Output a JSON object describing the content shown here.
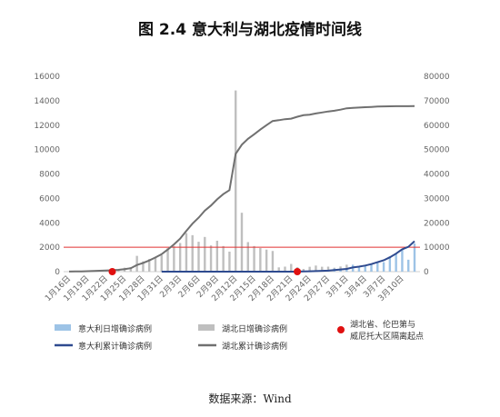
{
  "title": "图 2.4  意大利与湖北疫情时间线",
  "source": "数据来源：Wind",
  "colors": {
    "italy_daily": "#9dc3e6",
    "hubei_daily": "#bfbfbf",
    "italy_cum": "#2e4a8f",
    "hubei_cum": "#707070",
    "ref_line": "#e03030",
    "marker": "#e01010",
    "axis": "#d0d0d0"
  },
  "chart_data": {
    "type": "bar+line",
    "title": "图 2.4  意大利与湖北疫情时间线",
    "x_tick_labels": [
      "1月16日",
      "1月19日",
      "1月22日",
      "1月25日",
      "1月28日",
      "1月31日",
      "2月3日",
      "2月6日",
      "2月9日",
      "2月12日",
      "2月15日",
      "2月18日",
      "2月21日",
      "2月24日",
      "2月27日",
      "3月1日",
      "3月4日",
      "3月7日",
      "3月10日"
    ],
    "date_start": "1月16日",
    "left_axis": {
      "ylim": [
        0,
        16000
      ],
      "ticks": [
        "0",
        "2000",
        "4000",
        "6000",
        "8000",
        "10000",
        "12000",
        "14000",
        "16000"
      ]
    },
    "right_axis": {
      "ylim": [
        0,
        80000
      ],
      "ticks": [
        "0",
        "10000",
        "20000",
        "30000",
        "40000",
        "50000",
        "60000",
        "70000",
        "80000"
      ]
    },
    "reference_line_right": 10000,
    "series": [
      {
        "name": "意大利日增确诊病例",
        "kind": "bar",
        "axis": "left",
        "values": [
          0,
          0,
          0,
          0,
          0,
          0,
          0,
          0,
          0,
          0,
          0,
          0,
          0,
          0,
          0,
          2,
          0,
          0,
          0,
          0,
          0,
          0,
          0,
          0,
          0,
          0,
          0,
          0,
          0,
          0,
          0,
          0,
          0,
          0,
          0,
          0,
          0,
          14,
          62,
          53,
          97,
          93,
          78,
          250,
          238,
          240,
          566,
          342,
          466,
          587,
          769,
          778,
          1247,
          1492,
          1797,
          977,
          2313
        ]
      },
      {
        "name": "湖北日增确诊病例",
        "kind": "bar",
        "axis": "left",
        "values": [
          4,
          17,
          59,
          77,
          72,
          105,
          69,
          105,
          180,
          323,
          371,
          1291,
          840,
          1032,
          1220,
          1347,
          1921,
          2103,
          2345,
          3156,
          2987,
          2447,
          2841,
          2147,
          2531,
          2097,
          1638,
          14840,
          4823,
          2420,
          2097,
          1933,
          1807,
          1693,
          349,
          411,
          631,
          366,
          220,
          398,
          499,
          401,
          409,
          318,
          423,
          570,
          196,
          114,
          115,
          111,
          80,
          41,
          45,
          20,
          36,
          17,
          13
        ]
      },
      {
        "name": "意大利累计确诊病例",
        "kind": "line",
        "axis": "right",
        "values": [
          0,
          0,
          0,
          0,
          0,
          0,
          0,
          0,
          0,
          0,
          0,
          0,
          0,
          0,
          0,
          2,
          2,
          2,
          2,
          2,
          3,
          3,
          3,
          3,
          3,
          3,
          3,
          3,
          3,
          3,
          3,
          3,
          3,
          3,
          3,
          3,
          3,
          17,
          79,
          132,
          229,
          322,
          400,
          650,
          888,
          1128,
          1694,
          2036,
          2502,
          3089,
          3858,
          4636,
          5883,
          7375,
          9172,
          10149,
          12462
        ]
      },
      {
        "name": "湖北累计确诊病例",
        "kind": "line",
        "axis": "right",
        "values": [
          45,
          62,
          121,
          198,
          270,
          375,
          444,
          549,
          729,
          1052,
          1423,
          2714,
          3554,
          4586,
          5806,
          7153,
          9074,
          11177,
          13522,
          16678,
          19665,
          22112,
          24953,
          27100,
          29631,
          31728,
          33366,
          48206,
          51986,
          54406,
          56249,
          58182,
          59989,
          61682,
          62031,
          62442,
          62662,
          63454,
          64084,
          64287,
          64786,
          65187,
          65596,
          65914,
          66337,
          66907,
          67103,
          67217,
          67332,
          67466,
          67592,
          67666,
          67707,
          67743,
          67760,
          67773,
          67781
        ]
      },
      {
        "name": "湖北省、伦巴第与威尼托大区隔离起点",
        "kind": "marker",
        "axis": "right",
        "points": [
          {
            "x": "1月23日",
            "y": 0
          },
          {
            "x": "2月22日",
            "y": 0
          }
        ]
      }
    ],
    "grid": false,
    "legend_position": "bottom"
  }
}
